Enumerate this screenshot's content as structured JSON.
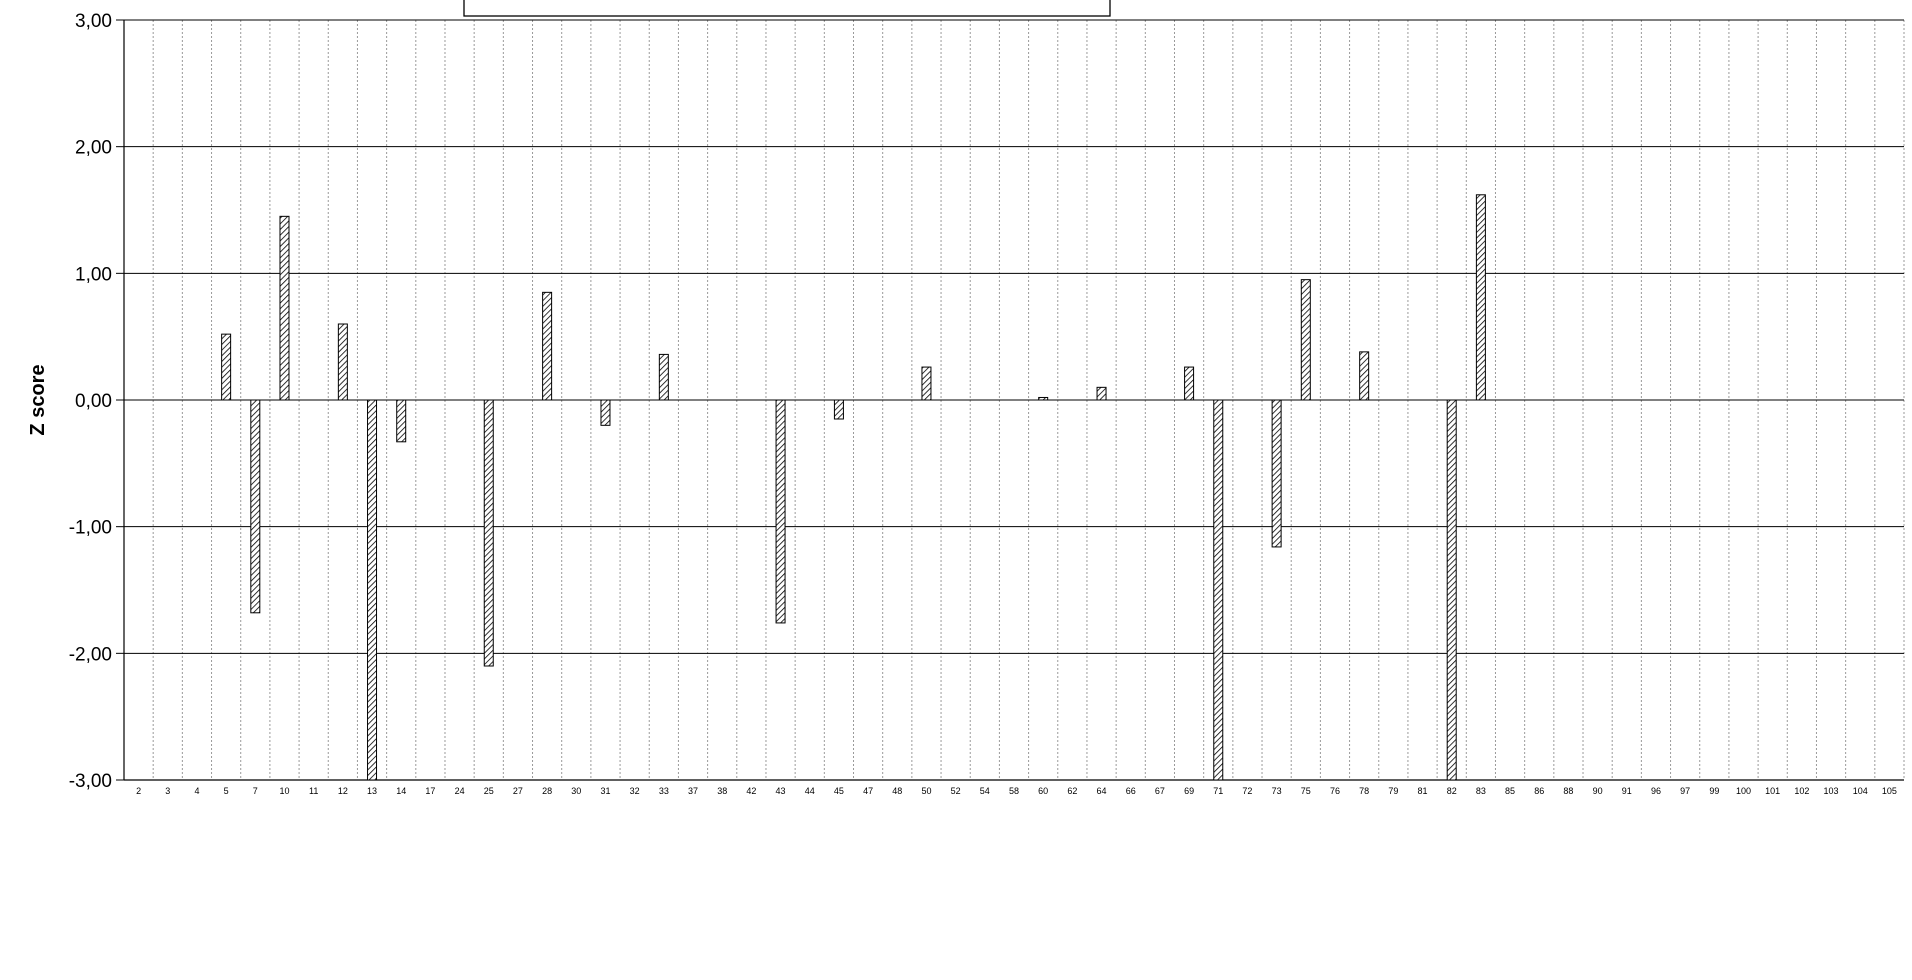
{
  "chart_data": {
    "type": "bar",
    "title": "",
    "xlabel": "",
    "ylabel": "Z score",
    "ylim": [
      -3,
      3
    ],
    "yticks": [
      "3,00",
      "2,00",
      "1,00",
      "0,00",
      "-1,00",
      "-2,00",
      "-3,00"
    ],
    "grid": true,
    "bar_pattern": "diagonal-hatch",
    "categories": [
      "2",
      "3",
      "4",
      "5",
      "7",
      "10",
      "11",
      "12",
      "13",
      "14",
      "17",
      "24",
      "25",
      "27",
      "28",
      "30",
      "31",
      "32",
      "33",
      "37",
      "38",
      "42",
      "43",
      "44",
      "45",
      "47",
      "48",
      "50",
      "52",
      "54",
      "58",
      "60",
      "62",
      "64",
      "66",
      "67",
      "69",
      "71",
      "72",
      "73",
      "75",
      "76",
      "78",
      "79",
      "81",
      "82",
      "83",
      "85",
      "86",
      "88",
      "90",
      "91",
      "96",
      "97",
      "99",
      "100",
      "101",
      "102",
      "103",
      "104",
      "105"
    ],
    "values": [
      0,
      0,
      0,
      0.52,
      -1.68,
      1.45,
      0,
      0.6,
      -3.0,
      -0.33,
      0,
      0,
      -2.1,
      0,
      0.85,
      0,
      -0.2,
      0,
      0.36,
      0,
      0,
      0,
      -1.76,
      0,
      -0.15,
      0,
      0,
      0.26,
      0,
      0,
      0,
      0.02,
      0,
      0.1,
      0,
      0,
      0.26,
      -3.0,
      0,
      -1.16,
      0.95,
      0,
      0.38,
      0,
      0,
      -3.0,
      1.62,
      0,
      0,
      0,
      0,
      0,
      0,
      0,
      0,
      0,
      0,
      0,
      0,
      0,
      0
    ]
  }
}
